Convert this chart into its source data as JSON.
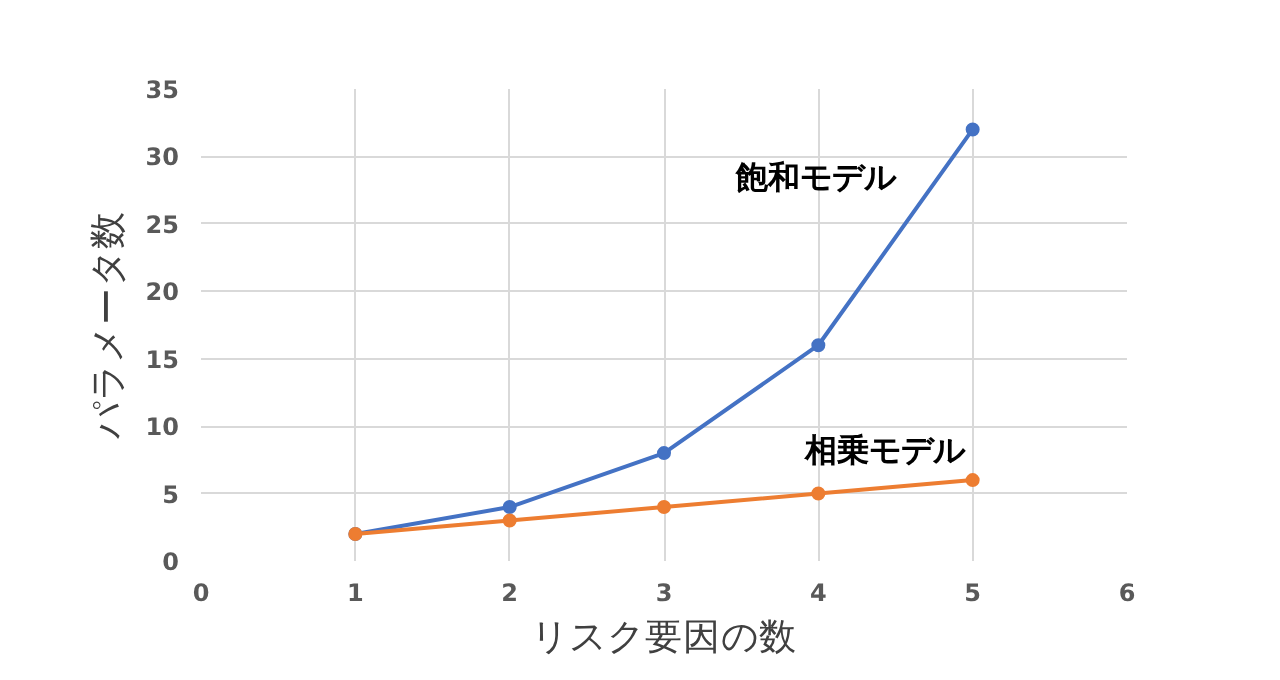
{
  "chart_data": {
    "type": "line",
    "xlabel": "リスク要因の数",
    "ylabel": "パラメータ数",
    "x": [
      1,
      2,
      3,
      4,
      5
    ],
    "series": [
      {
        "name": "飽和モデル",
        "color": "#4472c4",
        "values": [
          2,
          4,
          8,
          16,
          32
        ]
      },
      {
        "name": "相乗モデル",
        "color": "#ed7d31",
        "values": [
          2,
          3,
          4,
          5,
          6
        ]
      }
    ],
    "xlim": [
      0,
      6
    ],
    "xticks": [
      0,
      1,
      2,
      3,
      4,
      5,
      6
    ],
    "ylim": [
      0,
      35
    ],
    "yticks": [
      0,
      5,
      10,
      15,
      20,
      25,
      30,
      35
    ],
    "grid": true,
    "marker": "circle",
    "line_style": "solid"
  }
}
